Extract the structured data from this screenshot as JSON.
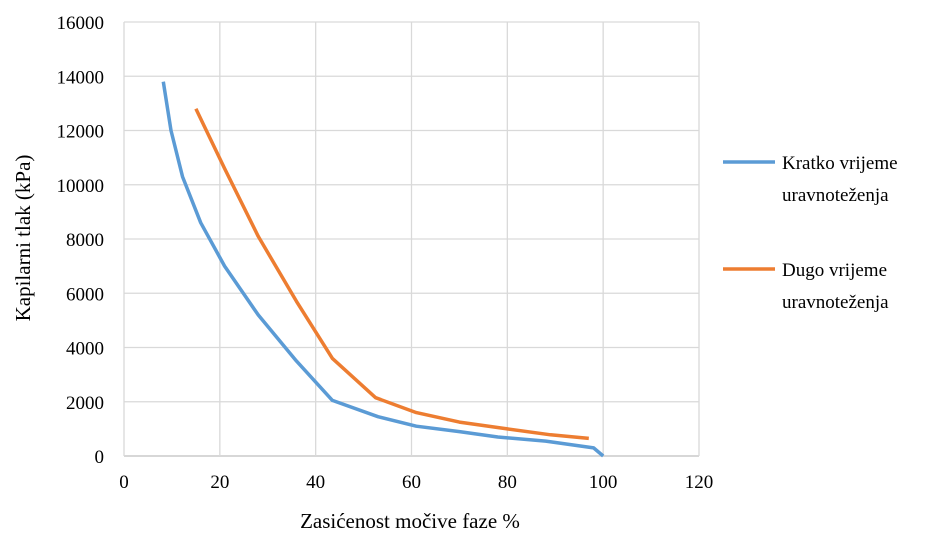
{
  "chart_data": {
    "type": "line",
    "xlabel": "Zasićenost močive faze %",
    "ylabel": "Kapilarni tlak (kPa)",
    "xlim": [
      0,
      120
    ],
    "ylim": [
      0,
      16000
    ],
    "x_ticks": [
      "0",
      "20",
      "40",
      "60",
      "80",
      "100",
      "120"
    ],
    "y_ticks": [
      "0",
      "2000",
      "4000",
      "6000",
      "8000",
      "10000",
      "12000",
      "14000",
      "16000"
    ],
    "grid": true,
    "legend_position": "right",
    "series": [
      {
        "name": "Kratko vrijeme uravnoteženja",
        "name_lines": [
          "Kratko vrijeme",
          "uravnoteženja"
        ],
        "color": "#5b9bd5",
        "x": [
          8.2,
          9.8,
          12.2,
          16,
          21,
          28,
          36,
          43.5,
          53,
          61,
          70,
          78,
          88,
          98,
          100
        ],
        "y": [
          13800,
          12000,
          10300,
          8600,
          7000,
          5200,
          3500,
          2050,
          1450,
          1100,
          900,
          700,
          550,
          300,
          0
        ]
      },
      {
        "name": "Dugo vrijeme uravnoteženja",
        "name_lines": [
          "Dugo vrijeme",
          "uravnoteženja"
        ],
        "color": "#ed7d31",
        "x": [
          15,
          21,
          28,
          36,
          43.5,
          52.5,
          61,
          70,
          80,
          89,
          97
        ],
        "y": [
          12800,
          10600,
          8100,
          5700,
          3600,
          2150,
          1600,
          1250,
          1000,
          780,
          650
        ]
      }
    ]
  }
}
